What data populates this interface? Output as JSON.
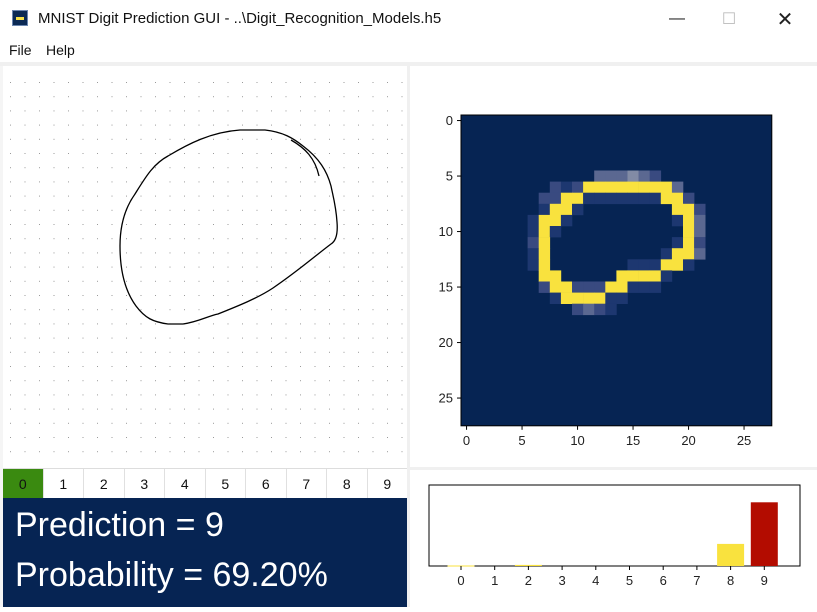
{
  "window": {
    "title": "MNIST Digit Prediction GUI - ..\\Digit_Recognition_Models.h5",
    "minimize": "—",
    "maximize": "☐",
    "close": "✕"
  },
  "menu": {
    "file": "File",
    "help": "Help"
  },
  "digit_buttons": {
    "labels": [
      "0",
      "1",
      "2",
      "3",
      "4",
      "5",
      "6",
      "7",
      "8",
      "9"
    ],
    "selected": "0"
  },
  "result": {
    "prediction": "Prediction = 9",
    "probability": "Probability = 69.20%"
  },
  "colors": {
    "grid_bg": "#062453",
    "highlight": "#f9e23e",
    "max_bar": "#b30c00",
    "active_button": "#3a8a10"
  },
  "image_plot": {
    "x_ticks": [
      0,
      5,
      10,
      15,
      20,
      25
    ],
    "y_ticks": [
      0,
      5,
      10,
      15,
      20,
      25
    ],
    "size": 28
  },
  "chart_data": {
    "type": "bar",
    "categories": [
      "0",
      "1",
      "2",
      "3",
      "4",
      "5",
      "6",
      "7",
      "8",
      "9"
    ],
    "values": [
      0.005,
      0.0,
      0.012,
      0.0,
      0.0,
      0.0,
      0.0,
      0.0,
      0.24,
      0.692
    ],
    "bar_colors": [
      "#f9e23e",
      "#f9e23e",
      "#f9e23e",
      "#f9e23e",
      "#f9e23e",
      "#f9e23e",
      "#f9e23e",
      "#f9e23e",
      "#f9e23e",
      "#b30c00"
    ],
    "ylim": [
      0,
      0.88
    ],
    "title": "",
    "xlabel": "",
    "ylabel": ""
  }
}
